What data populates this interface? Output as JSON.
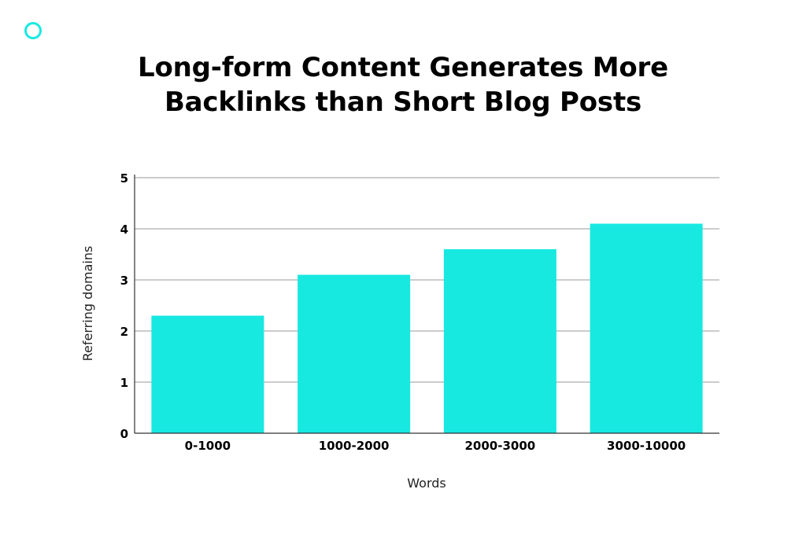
{
  "brand": {
    "accent_color": "#17e9e1",
    "logo_icon": "circle-ring-icon"
  },
  "chart_data": {
    "type": "bar",
    "title_lines": [
      "Long-form Content Generates More",
      "Backlinks than Short Blog Posts"
    ],
    "categories": [
      "0-1000",
      "1000-2000",
      "2000-3000",
      "3000-10000"
    ],
    "values": [
      2.3,
      3.1,
      3.6,
      4.1
    ],
    "xlabel": "Words",
    "ylabel": "Referring domains",
    "ylim": [
      0,
      5
    ],
    "yticks": [
      "0",
      "1",
      "2",
      "3",
      "4",
      "5"
    ],
    "grid": true,
    "legend": "none",
    "bar_color": "#17e9e1"
  }
}
